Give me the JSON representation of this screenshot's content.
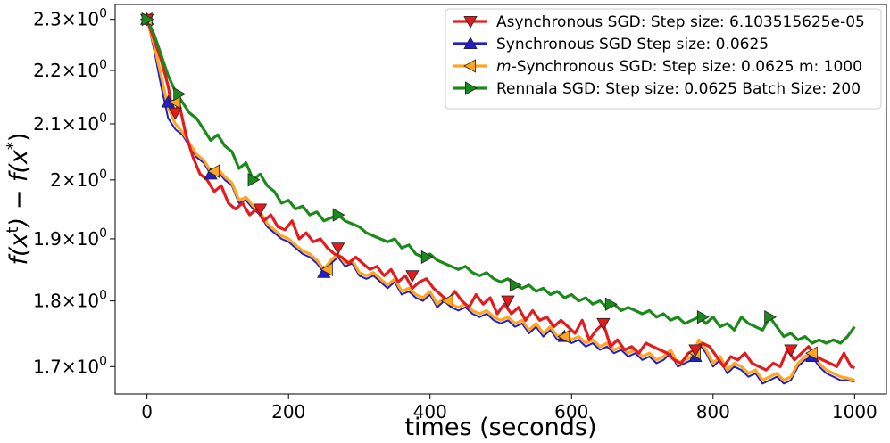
{
  "chart_data": {
    "type": "line",
    "xlabel": "times (seconds)",
    "ylabel": "f(x^t) − f(x^*)",
    "x_scale": "linear",
    "y_scale": "log",
    "xlim": [
      -45,
      1045
    ],
    "ylim": [
      1.66,
      2.33
    ],
    "x_ticks": [
      0,
      200,
      400,
      600,
      800,
      1000
    ],
    "x_tick_labels": [
      "0",
      "200",
      "400",
      "600",
      "800",
      "1000"
    ],
    "y_ticks": [
      1.7,
      1.8,
      1.9,
      2.0,
      2.1,
      2.2,
      2.3
    ],
    "y_tick_labels": [
      {
        "mantissa": "1.7",
        "base": "10",
        "exp": "0"
      },
      {
        "mantissa": "1.8",
        "base": "10",
        "exp": "0"
      },
      {
        "mantissa": "1.9",
        "base": "10",
        "exp": "0"
      },
      {
        "mantissa": "2",
        "base": "10",
        "exp": "0"
      },
      {
        "mantissa": "2.1",
        "base": "10",
        "exp": "0"
      },
      {
        "mantissa": "2.2",
        "base": "10",
        "exp": "0"
      },
      {
        "mantissa": "2.3",
        "base": "10",
        "exp": "0"
      }
    ],
    "grid": false,
    "legend_position": "top-right",
    "series": [
      {
        "name": "Asynchronous SGD: Step size: 6.103515625e-05",
        "color": "#e41a1c",
        "marker": "triangle-down",
        "x": [
          0,
          10,
          20,
          30,
          35,
          40,
          45,
          55,
          65,
          75,
          85,
          95,
          105,
          115,
          125,
          135,
          145,
          155,
          165,
          175,
          185,
          195,
          205,
          215,
          225,
          235,
          245,
          255,
          265,
          275,
          285,
          295,
          305,
          315,
          325,
          335,
          345,
          355,
          365,
          375,
          385,
          395,
          405,
          415,
          425,
          435,
          445,
          455,
          465,
          475,
          485,
          495,
          505,
          515,
          525,
          535,
          545,
          555,
          565,
          575,
          585,
          595,
          605,
          615,
          625,
          635,
          645,
          655,
          665,
          675,
          685,
          695,
          705,
          715,
          725,
          735,
          745,
          755,
          765,
          775,
          785,
          795,
          805,
          815,
          825,
          835,
          845,
          855,
          865,
          875,
          885,
          895,
          905,
          915,
          925,
          935,
          945,
          955,
          965,
          975,
          985,
          995,
          1000
        ],
        "y": [
          2.3,
          2.26,
          2.22,
          2.17,
          2.13,
          2.12,
          2.14,
          2.08,
          2.04,
          2.01,
          2.0,
          1.98,
          1.99,
          1.96,
          1.95,
          1.96,
          1.94,
          1.95,
          1.93,
          1.94,
          1.92,
          1.915,
          1.93,
          1.9,
          1.91,
          1.895,
          1.9,
          1.885,
          1.875,
          1.87,
          1.86,
          1.87,
          1.86,
          1.85,
          1.855,
          1.84,
          1.85,
          1.83,
          1.84,
          1.82,
          1.83,
          1.835,
          1.82,
          1.81,
          1.8,
          1.815,
          1.8,
          1.79,
          1.81,
          1.795,
          1.805,
          1.78,
          1.795,
          1.78,
          1.79,
          1.77,
          1.785,
          1.77,
          1.775,
          1.76,
          1.77,
          1.76,
          1.75,
          1.77,
          1.74,
          1.755,
          1.765,
          1.73,
          1.74,
          1.725,
          1.73,
          1.72,
          1.735,
          1.73,
          1.725,
          1.72,
          1.71,
          1.705,
          1.72,
          1.725,
          1.735,
          1.73,
          1.715,
          1.7,
          1.715,
          1.71,
          1.72,
          1.705,
          1.7,
          1.695,
          1.705,
          1.7,
          1.725,
          1.71,
          1.72,
          1.73,
          1.715,
          1.71,
          1.705,
          1.7,
          1.72,
          1.7,
          1.698
        ]
      },
      {
        "name": "Synchronous SGD Step size: 0.0625",
        "color": "#1f1fcc",
        "marker": "triangle-up",
        "x": [
          0,
          10,
          20,
          30,
          40,
          50,
          60,
          70,
          80,
          90,
          100,
          110,
          120,
          130,
          140,
          150,
          160,
          170,
          180,
          190,
          200,
          210,
          220,
          230,
          240,
          250,
          260,
          270,
          280,
          290,
          300,
          310,
          320,
          330,
          340,
          350,
          360,
          370,
          380,
          390,
          400,
          410,
          420,
          430,
          440,
          450,
          460,
          470,
          480,
          490,
          500,
          510,
          520,
          530,
          540,
          550,
          560,
          570,
          580,
          590,
          600,
          610,
          620,
          630,
          640,
          650,
          660,
          670,
          680,
          690,
          700,
          710,
          720,
          730,
          740,
          750,
          760,
          770,
          780,
          790,
          800,
          810,
          820,
          830,
          840,
          850,
          860,
          870,
          880,
          890,
          900,
          910,
          920,
          930,
          940,
          950,
          960,
          970,
          980,
          990,
          1000
        ],
        "y": [
          2.3,
          2.24,
          2.17,
          2.11,
          2.09,
          2.08,
          2.06,
          2.04,
          2.03,
          2.01,
          2.015,
          2.0,
          1.99,
          1.96,
          1.965,
          1.95,
          1.94,
          1.92,
          1.91,
          1.9,
          1.895,
          1.885,
          1.875,
          1.87,
          1.86,
          1.845,
          1.86,
          1.87,
          1.855,
          1.86,
          1.84,
          1.835,
          1.84,
          1.83,
          1.82,
          1.83,
          1.81,
          1.815,
          1.805,
          1.8,
          1.81,
          1.79,
          1.8,
          1.79,
          1.785,
          1.79,
          1.78,
          1.775,
          1.78,
          1.77,
          1.765,
          1.77,
          1.76,
          1.765,
          1.75,
          1.76,
          1.745,
          1.755,
          1.74,
          1.745,
          1.735,
          1.74,
          1.73,
          1.735,
          1.725,
          1.73,
          1.72,
          1.725,
          1.715,
          1.72,
          1.71,
          1.715,
          1.705,
          1.71,
          1.72,
          1.7,
          1.705,
          1.71,
          1.735,
          1.72,
          1.7,
          1.71,
          1.69,
          1.7,
          1.695,
          1.685,
          1.69,
          1.675,
          1.68,
          1.685,
          1.675,
          1.68,
          1.7,
          1.71,
          1.715,
          1.7,
          1.69,
          1.685,
          1.68,
          1.68,
          1.678
        ]
      },
      {
        "name": "m-Synchronous  SGD: Step size: 0.0625 m: 1000",
        "color": "#ffa51f",
        "marker": "triangle-left",
        "x": [
          0,
          10,
          20,
          30,
          40,
          50,
          60,
          70,
          80,
          90,
          100,
          110,
          120,
          130,
          140,
          150,
          160,
          170,
          180,
          190,
          200,
          210,
          220,
          230,
          240,
          250,
          260,
          270,
          280,
          290,
          300,
          310,
          320,
          330,
          340,
          350,
          360,
          370,
          380,
          390,
          400,
          410,
          420,
          430,
          440,
          450,
          460,
          470,
          480,
          490,
          500,
          510,
          520,
          530,
          540,
          550,
          560,
          570,
          580,
          590,
          600,
          610,
          620,
          630,
          640,
          650,
          660,
          670,
          680,
          690,
          700,
          710,
          720,
          730,
          740,
          750,
          760,
          770,
          780,
          790,
          800,
          810,
          820,
          830,
          840,
          850,
          860,
          870,
          880,
          890,
          900,
          910,
          920,
          930,
          940,
          950,
          960,
          970,
          980,
          990,
          1000
        ],
        "y": [
          2.3,
          2.25,
          2.19,
          2.13,
          2.1,
          2.085,
          2.065,
          2.045,
          2.035,
          2.015,
          2.02,
          2.005,
          1.995,
          1.965,
          1.97,
          1.955,
          1.945,
          1.925,
          1.915,
          1.905,
          1.9,
          1.89,
          1.88,
          1.875,
          1.865,
          1.85,
          1.865,
          1.875,
          1.86,
          1.865,
          1.845,
          1.84,
          1.845,
          1.835,
          1.825,
          1.835,
          1.815,
          1.82,
          1.81,
          1.805,
          1.815,
          1.795,
          1.805,
          1.795,
          1.79,
          1.795,
          1.785,
          1.78,
          1.785,
          1.775,
          1.77,
          1.775,
          1.765,
          1.77,
          1.755,
          1.765,
          1.75,
          1.76,
          1.745,
          1.75,
          1.74,
          1.745,
          1.735,
          1.74,
          1.73,
          1.735,
          1.725,
          1.73,
          1.72,
          1.725,
          1.715,
          1.72,
          1.71,
          1.715,
          1.725,
          1.705,
          1.71,
          1.715,
          1.74,
          1.725,
          1.705,
          1.715,
          1.695,
          1.705,
          1.7,
          1.69,
          1.695,
          1.68,
          1.685,
          1.69,
          1.68,
          1.685,
          1.705,
          1.715,
          1.72,
          1.705,
          1.695,
          1.69,
          1.685,
          1.683,
          1.68
        ]
      },
      {
        "name": "Rennala SGD: Step size: 0.0625 Batch Size: 200",
        "color": "#1a8a1a",
        "marker": "triangle-right",
        "x": [
          0,
          10,
          20,
          30,
          40,
          50,
          60,
          70,
          80,
          90,
          100,
          110,
          120,
          130,
          140,
          150,
          160,
          170,
          180,
          190,
          200,
          210,
          220,
          230,
          240,
          250,
          260,
          270,
          280,
          290,
          300,
          310,
          320,
          330,
          340,
          350,
          360,
          370,
          380,
          390,
          400,
          410,
          420,
          430,
          440,
          450,
          460,
          470,
          480,
          490,
          500,
          510,
          520,
          530,
          540,
          550,
          560,
          570,
          580,
          590,
          600,
          610,
          620,
          630,
          640,
          650,
          660,
          670,
          680,
          690,
          700,
          710,
          720,
          730,
          740,
          750,
          760,
          770,
          780,
          790,
          800,
          810,
          820,
          830,
          840,
          850,
          860,
          870,
          880,
          890,
          900,
          910,
          920,
          930,
          940,
          950,
          960,
          970,
          980,
          990,
          1000
        ],
        "y": [
          2.3,
          2.27,
          2.23,
          2.19,
          2.16,
          2.14,
          2.12,
          2.11,
          2.09,
          2.07,
          2.08,
          2.06,
          2.05,
          2.02,
          2.03,
          2.0,
          2.01,
          1.99,
          1.98,
          1.96,
          1.965,
          1.95,
          1.955,
          1.94,
          1.945,
          1.93,
          1.935,
          1.94,
          1.93,
          1.925,
          1.92,
          1.91,
          1.905,
          1.9,
          1.895,
          1.9,
          1.885,
          1.89,
          1.875,
          1.87,
          1.875,
          1.865,
          1.86,
          1.855,
          1.85,
          1.855,
          1.845,
          1.84,
          1.845,
          1.835,
          1.83,
          1.835,
          1.825,
          1.82,
          1.825,
          1.815,
          1.82,
          1.81,
          1.815,
          1.805,
          1.81,
          1.8,
          1.805,
          1.795,
          1.8,
          1.79,
          1.795,
          1.785,
          1.79,
          1.785,
          1.78,
          1.785,
          1.775,
          1.78,
          1.77,
          1.775,
          1.765,
          1.77,
          1.775,
          1.765,
          1.775,
          1.76,
          1.765,
          1.755,
          1.775,
          1.765,
          1.76,
          1.755,
          1.775,
          1.76,
          1.745,
          1.75,
          1.74,
          1.745,
          1.735,
          1.74,
          1.735,
          1.74,
          1.735,
          1.745,
          1.76
        ]
      }
    ],
    "markers": [
      {
        "series": 0,
        "points": [
          [
            0,
            2.3
          ],
          [
            40,
            2.12
          ],
          [
            160,
            1.95
          ],
          [
            270,
            1.885
          ],
          [
            375,
            1.84
          ],
          [
            510,
            1.8
          ],
          [
            645,
            1.765
          ],
          [
            775,
            1.725
          ],
          [
            910,
            1.725
          ]
        ]
      },
      {
        "series": 1,
        "points": [
          [
            0,
            2.3
          ],
          [
            30,
            2.14
          ],
          [
            90,
            2.01
          ],
          [
            250,
            1.845
          ],
          [
            590,
            1.745
          ],
          [
            775,
            1.715
          ],
          [
            940,
            1.715
          ]
        ]
      },
      {
        "series": 2,
        "points": [
          [
            0,
            2.3
          ],
          [
            40,
            2.14
          ],
          [
            95,
            2.015
          ],
          [
            255,
            1.85
          ],
          [
            425,
            1.8
          ],
          [
            590,
            1.745
          ],
          [
            775,
            1.72
          ],
          [
            940,
            1.72
          ]
        ]
      },
      {
        "series": 3,
        "points": [
          [
            0,
            2.3
          ],
          [
            45,
            2.155
          ],
          [
            150,
            2.0
          ],
          [
            270,
            1.94
          ],
          [
            395,
            1.87
          ],
          [
            520,
            1.825
          ],
          [
            655,
            1.795
          ],
          [
            785,
            1.775
          ],
          [
            880,
            1.775
          ]
        ]
      }
    ]
  }
}
